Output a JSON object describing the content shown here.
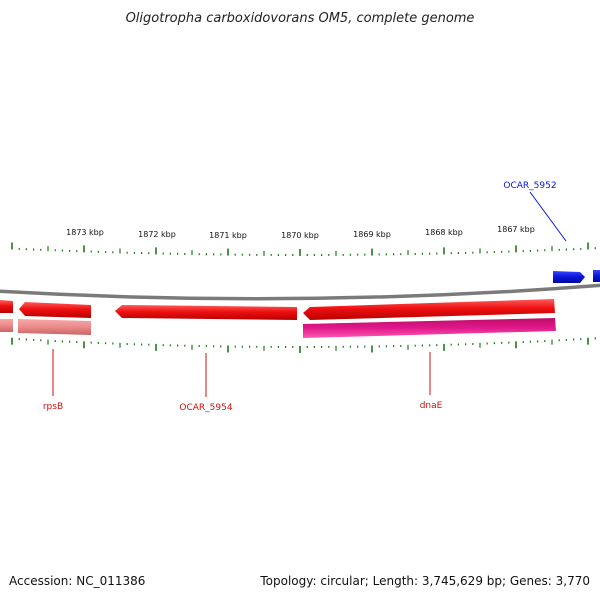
{
  "title": "Oligotropha carboxidovorans OM5, complete genome",
  "footer": {
    "accession": "Accession: NC_011386",
    "summary": "Topology: circular; Length: 3,745,629 bp; Genes: 3,770"
  },
  "ruler": {
    "labels": [
      "1873 kbp",
      "1872 kbp",
      "1871 kbp",
      "1870 kbp",
      "1869 kbp",
      "1868 kbp",
      "1867 kbp"
    ],
    "tick_color": "#1a7a1a"
  },
  "features": [
    {
      "label": "OCAR_5952",
      "color": "#0a14d8"
    },
    {
      "label": "rpsB",
      "color": "#cc1010"
    },
    {
      "label": "OCAR_5954",
      "color": "#cc1010"
    },
    {
      "label": "dnaE",
      "color": "#cc1010"
    }
  ],
  "colors": {
    "backbone": "#7a7a7a",
    "cds_red": "#ee1010",
    "cds_pale": "#f08888",
    "cds_magenta": "#e0188a",
    "cds_blue": "#0a14d8"
  }
}
